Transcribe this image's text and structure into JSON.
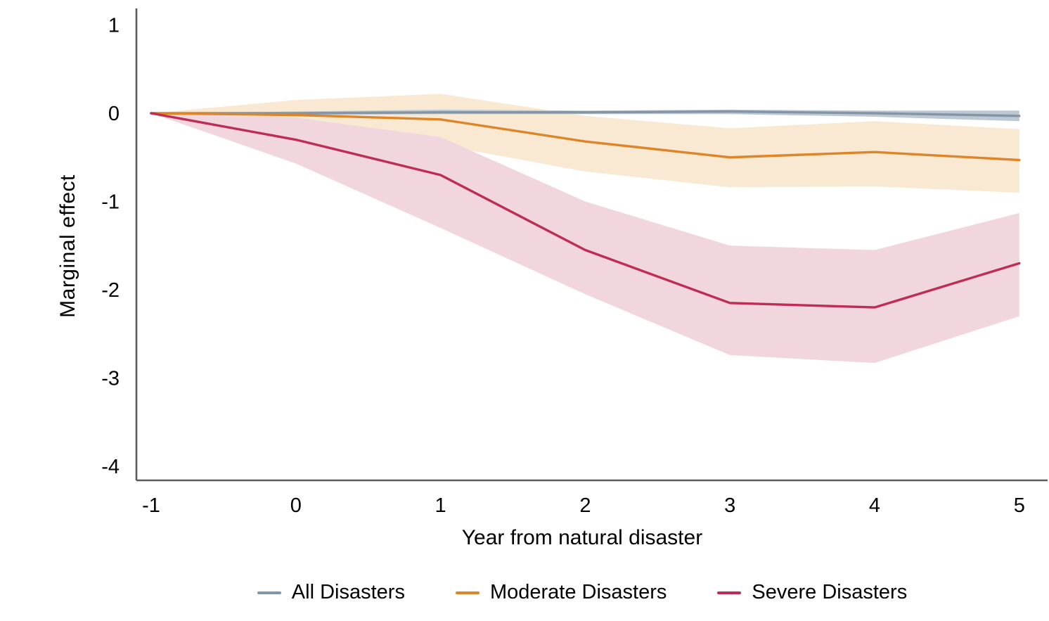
{
  "page": {
    "background_color": "#FFFFFF",
    "text_color": "#000000",
    "axis_color": "#5B5B5B"
  },
  "chart_data": {
    "type": "line",
    "title": "",
    "xlabel": "Year from natural disaster",
    "ylabel": "Marginal effect",
    "x": [
      -1,
      0,
      1,
      2,
      3,
      4,
      5
    ],
    "x_tick_labels": [
      "-1",
      "0",
      "1",
      "2",
      "3",
      "4",
      "5"
    ],
    "y_ticks": [
      1,
      0,
      -1,
      -2,
      -3,
      -4
    ],
    "y_tick_labels": [
      "1",
      "0",
      "-1",
      "-2",
      "-3",
      "-4"
    ],
    "xlim": [
      -1.1,
      5.2
    ],
    "ylim": [
      -4.16,
      1.19
    ],
    "grid": false,
    "legend_position": "bottom",
    "series": [
      {
        "name": "All Disasters",
        "color": "#8496A6",
        "band_color": "#BCC8D3",
        "values": [
          0,
          0.0,
          0.01,
          0.01,
          0.02,
          0.0,
          -0.03
        ],
        "ci_upper": [
          0,
          0.02,
          0.04,
          0.03,
          0.04,
          0.03,
          0.03
        ],
        "ci_lower": [
          0,
          -0.02,
          -0.01,
          -0.01,
          -0.01,
          -0.04,
          -0.09
        ]
      },
      {
        "name": "Moderate Disasters",
        "color": "#DD8629",
        "band_color": "#F9E9D2",
        "values": [
          0,
          -0.02,
          -0.07,
          -0.32,
          -0.5,
          -0.44,
          -0.53
        ],
        "ci_upper": [
          0,
          0.15,
          0.22,
          -0.03,
          -0.17,
          -0.09,
          -0.18
        ],
        "ci_lower": [
          0,
          -0.18,
          -0.36,
          -0.66,
          -0.84,
          -0.83,
          -0.9
        ]
      },
      {
        "name": "Severe Disasters",
        "color": "#BF2C55",
        "band_color": "#F1D7DD",
        "values": [
          0,
          -0.3,
          -0.7,
          -1.55,
          -2.15,
          -2.2,
          -1.7
        ],
        "ci_upper": [
          0,
          -0.05,
          -0.27,
          -1.0,
          -1.5,
          -1.55,
          -1.13
        ],
        "ci_lower": [
          0,
          -0.57,
          -1.3,
          -2.05,
          -2.74,
          -2.83,
          -2.3
        ]
      }
    ]
  }
}
